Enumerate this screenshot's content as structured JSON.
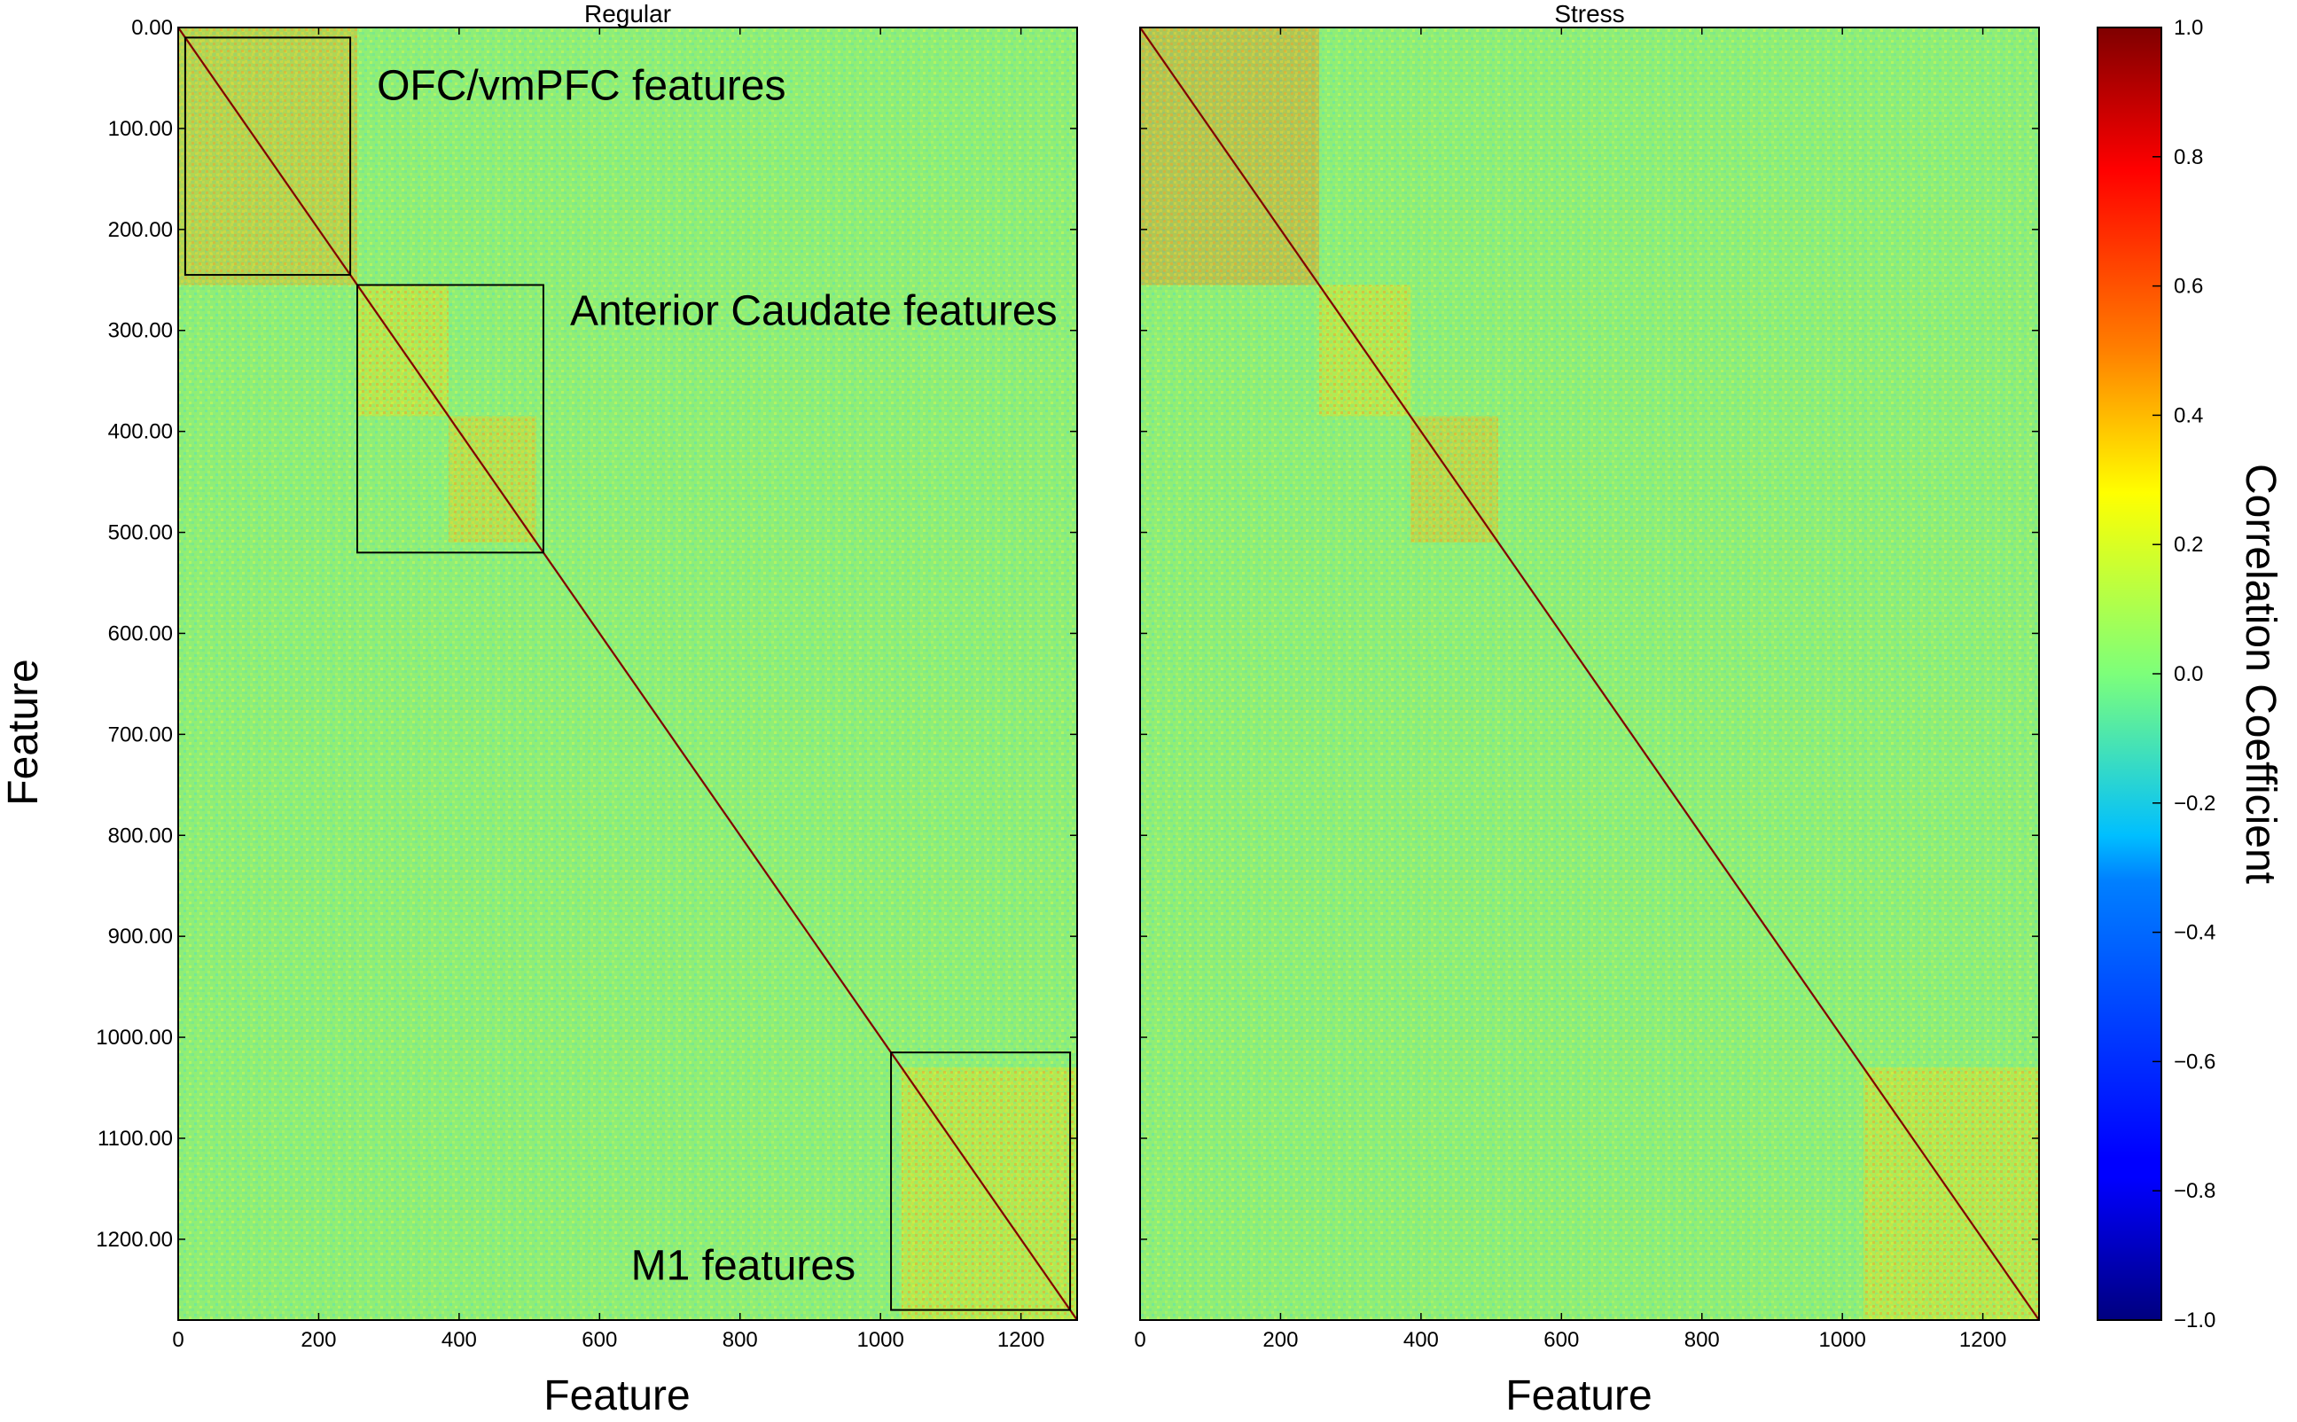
{
  "chart_data": {
    "type": "heatmap",
    "shared": {
      "n_features": 1280,
      "x_ticks": [
        0,
        200,
        400,
        600,
        800,
        1000,
        1200
      ],
      "xlabel": "Feature",
      "ylabel": "Feature",
      "colorbar": {
        "label": "Correlation Coefficient",
        "min": -1.0,
        "max": 1.0,
        "ticks": [
          "1.0",
          "0.8",
          "0.6",
          "0.4",
          "0.2",
          "0.0",
          "−0.2",
          "−0.4",
          "−0.6",
          "−0.8",
          "−1.0"
        ],
        "colormap": "jet"
      },
      "background_level": 0.0
    },
    "panels": [
      {
        "title": "Regular",
        "y_ticks": [
          "0.00",
          "100.00",
          "200.00",
          "300.00",
          "400.00",
          "500.00",
          "600.00",
          "700.00",
          "800.00",
          "900.00",
          "1000.00",
          "1100.00",
          "1200.00"
        ],
        "diagonal_value": 1.0,
        "blocks": [
          {
            "start": 0,
            "end": 255,
            "value": 0.45
          },
          {
            "start": 255,
            "end": 385,
            "value": 0.3
          },
          {
            "start": 385,
            "end": 510,
            "value": 0.35
          },
          {
            "start": 1030,
            "end": 1280,
            "value": 0.3
          }
        ],
        "annotations": [
          {
            "text": "OFC/vmPFC features",
            "start": 10,
            "end": 245
          },
          {
            "text": "Anterior Caudate features",
            "start": 255,
            "end": 520
          },
          {
            "text": "M1 features",
            "start": 1015,
            "end": 1270
          }
        ]
      },
      {
        "title": "Stress",
        "diagonal_value": 1.0,
        "blocks": [
          {
            "start": 0,
            "end": 255,
            "value": 0.55
          },
          {
            "start": 255,
            "end": 385,
            "value": 0.3
          },
          {
            "start": 385,
            "end": 510,
            "value": 0.4
          },
          {
            "start": 1030,
            "end": 1280,
            "value": 0.3
          }
        ]
      }
    ]
  }
}
